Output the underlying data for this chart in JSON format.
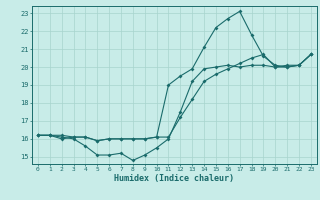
{
  "xlabel": "Humidex (Indice chaleur)",
  "bg_color": "#c8ece8",
  "grid_color": "#a8d4ce",
  "line_color": "#1a6b6b",
  "xlim": [
    -0.5,
    23.5
  ],
  "ylim": [
    14.6,
    23.4
  ],
  "xticks": [
    0,
    1,
    2,
    3,
    4,
    5,
    6,
    7,
    8,
    9,
    10,
    11,
    12,
    13,
    14,
    15,
    16,
    17,
    18,
    19,
    20,
    21,
    22,
    23
  ],
  "yticks": [
    15,
    16,
    17,
    18,
    19,
    20,
    21,
    22,
    23
  ],
  "curve_low_x": [
    0,
    1,
    2,
    3,
    4,
    5,
    6,
    7,
    8,
    9,
    10,
    11,
    12,
    13,
    14,
    15,
    16,
    17,
    18,
    19,
    20,
    21,
    22,
    23
  ],
  "curve_low_y": [
    16.2,
    16.2,
    16.1,
    16.0,
    15.6,
    15.1,
    15.1,
    15.2,
    14.8,
    15.1,
    15.5,
    16.0,
    17.5,
    19.2,
    19.9,
    20.0,
    20.1,
    20.0,
    20.1,
    20.1,
    20.0,
    20.1,
    20.1,
    20.7
  ],
  "curve_high_x": [
    0,
    1,
    2,
    3,
    4,
    5,
    6,
    7,
    8,
    9,
    10,
    11,
    12,
    13,
    14,
    15,
    16,
    17,
    18,
    19,
    20,
    21,
    22,
    23
  ],
  "curve_high_y": [
    16.2,
    16.2,
    16.0,
    16.1,
    16.1,
    15.9,
    16.0,
    16.0,
    16.0,
    16.0,
    16.1,
    19.0,
    19.5,
    19.9,
    21.1,
    22.2,
    22.7,
    23.1,
    21.8,
    20.6,
    20.1,
    20.0,
    20.1,
    20.7
  ],
  "curve_mid_x": [
    0,
    1,
    2,
    3,
    4,
    5,
    6,
    7,
    8,
    9,
    10,
    11,
    12,
    13,
    14,
    15,
    16,
    17,
    18,
    19,
    20,
    21,
    22,
    23
  ],
  "curve_mid_y": [
    16.2,
    16.2,
    16.2,
    16.1,
    16.1,
    15.9,
    16.0,
    16.0,
    16.0,
    16.0,
    16.1,
    16.1,
    17.2,
    18.2,
    19.2,
    19.6,
    19.9,
    20.2,
    20.5,
    20.7,
    20.0,
    20.0,
    20.1,
    20.7
  ]
}
